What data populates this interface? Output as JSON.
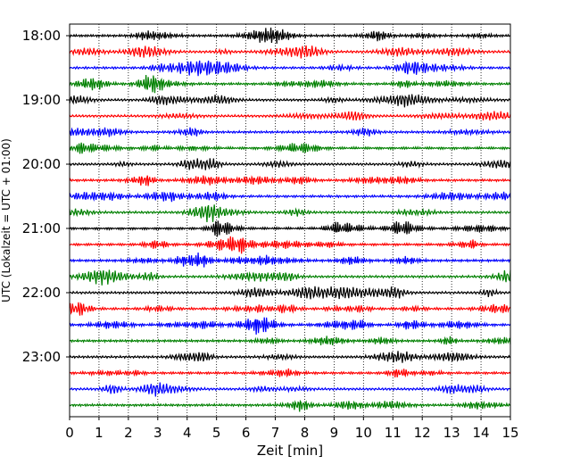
{
  "chart_data": {
    "type": "line",
    "subtype": "helicorder",
    "xlabel": "Zeit  [min]",
    "ylabel": "UTC (Lokalzeit = UTC + 01:00)",
    "xlim": [
      0,
      15
    ],
    "x_ticks": [
      "0",
      "1",
      "2",
      "3",
      "4",
      "5",
      "6",
      "7",
      "8",
      "9",
      "10",
      "11",
      "12",
      "13",
      "14",
      "15"
    ],
    "y_ticks": [
      "18:00",
      "19:00",
      "20:00",
      "21:00",
      "22:00",
      "23:00"
    ],
    "grid": "vertical dotted at each minute",
    "trace_minutes": 15,
    "start_utc": "18:00",
    "trace_count": 24,
    "color_cycle": [
      "#000000",
      "#ff0000",
      "#0000ff",
      "#008000"
    ],
    "trace_labels": [
      "18:00",
      "18:15",
      "18:30",
      "18:45",
      "19:00",
      "19:15",
      "19:30",
      "19:45",
      "20:00",
      "20:15",
      "20:30",
      "20:45",
      "21:00",
      "21:15",
      "21:30",
      "21:45",
      "22:00",
      "22:15",
      "22:30",
      "22:45",
      "23:00",
      "23:15",
      "23:30",
      "23:45"
    ]
  }
}
